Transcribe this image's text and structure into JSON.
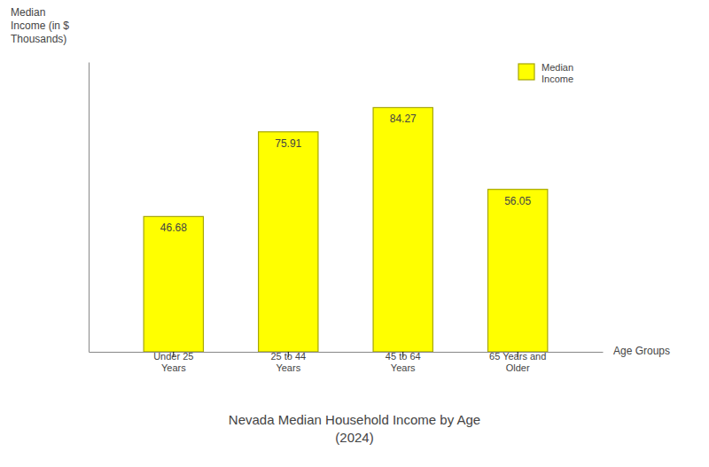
{
  "chart_data": {
    "type": "bar",
    "title": "Nevada Median Household Income by Age\n(2024)",
    "x_label": "Age Groups",
    "y_label": "Median\nIncome (in $\nThousands)",
    "categories": [
      "Under 25\nYears",
      "25 to 44\nYears",
      "45 to 64\nYears",
      "65 Years and\nOlder"
    ],
    "series": [
      {
        "name": "Median\nIncome",
        "color": "#FFFF00",
        "values": [
          46.68,
          75.91,
          84.27,
          56.05
        ]
      }
    ],
    "ylim": [
      0,
      100
    ],
    "yticks": [],
    "grid": false,
    "legend": "upper right",
    "data_labels": true,
    "tick_labels": "x"
  }
}
